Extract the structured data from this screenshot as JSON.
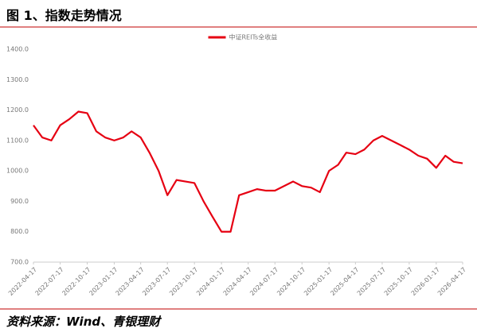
{
  "header": {
    "title": "图 1、指数走势情况"
  },
  "chart_data": {
    "type": "line",
    "series": [
      {
        "name": "中证REITs全收益",
        "color": "#e60012",
        "values": [
          1150,
          1110,
          1100,
          1150,
          1170,
          1195,
          1190,
          1130,
          1110,
          1100,
          1110,
          1130,
          1110,
          1060,
          1000,
          920,
          970,
          965,
          960,
          900,
          850,
          800,
          800,
          920,
          930,
          940,
          935,
          935,
          950,
          965,
          950,
          945,
          930,
          1000,
          1020,
          1060,
          1055,
          1070,
          1100,
          1115,
          1100,
          1085,
          1070,
          1050,
          1040,
          1010,
          1050,
          1030,
          1025
        ]
      }
    ],
    "x": [
      "2022-04-17",
      "2022-05-17",
      "2022-06-17",
      "2022-07-17",
      "2022-08-17",
      "2022-09-17",
      "2022-10-17",
      "2022-11-17",
      "2022-12-17",
      "2023-01-17",
      "2023-02-17",
      "2023-03-17",
      "2023-04-17",
      "2023-05-17",
      "2023-06-17",
      "2023-07-17",
      "2023-08-17",
      "2023-09-17",
      "2023-10-17",
      "2023-11-17",
      "2023-12-17",
      "2024-01-17",
      "2024-02-17",
      "2024-03-17",
      "2024-04-17",
      "2024-05-17",
      "2024-06-17",
      "2024-07-17",
      "2024-08-17",
      "2024-09-17",
      "2024-10-17",
      "2024-11-17",
      "2024-12-17",
      "2025-01-17",
      "2025-02-17",
      "2025-03-17",
      "2025-04-17",
      "2025-05-17",
      "2025-06-17",
      "2025-07-17",
      "2025-08-17",
      "2025-09-17",
      "2025-10-17",
      "2025-11-17",
      "2025-12-17",
      "2026-01-17",
      "2026-02-17",
      "2026-03-17",
      "2026-04-17"
    ],
    "xticks": [
      "2022-04-17",
      "2022-07-17",
      "2022-10-17",
      "2023-01-17",
      "2023-04-17",
      "2023-07-17",
      "2023-10-17",
      "2024-01-17",
      "2024-04-17",
      "2024-07-17",
      "2024-10-17",
      "2025-01-17",
      "2025-04-17",
      "2025-07-17",
      "2025-10-17",
      "2026-01-17",
      "2026-04-17"
    ],
    "ylim": [
      700,
      1400
    ],
    "yticks": [
      {
        "value": 700,
        "label": "700.0"
      },
      {
        "value": 800,
        "label": "800.0"
      },
      {
        "value": 900,
        "label": "900.0"
      },
      {
        "value": 1000,
        "label": "1000.0"
      },
      {
        "value": 1100,
        "label": "1100.0"
      },
      {
        "value": 1200,
        "label": "1200.0"
      },
      {
        "value": 1300,
        "label": "1300.0"
      },
      {
        "value": 1400,
        "label": "1400.0"
      }
    ],
    "legend": "top"
  },
  "footer": {
    "source": "资料来源：Wind、青银理财"
  }
}
